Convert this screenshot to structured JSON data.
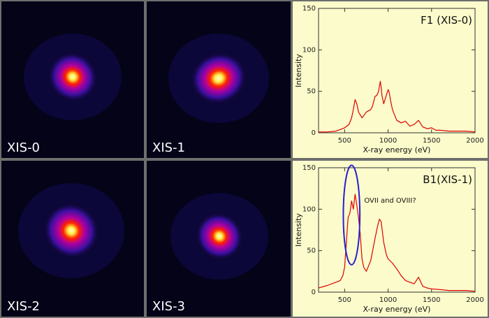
{
  "images": [
    {
      "label": "XIS-0"
    },
    {
      "label": "XIS-1"
    },
    {
      "label": "XIS-2"
    },
    {
      "label": "XIS-3"
    }
  ],
  "colors": {
    "image_background": "#040318",
    "chart_background": "#fbfbcb",
    "spectrum_line": "#e00000",
    "annotation_ellipse": "#2a1fd0"
  },
  "chart_data": [
    {
      "type": "line",
      "title": "F1 (XIS-0)",
      "xlabel": "X-ray energy (eV)",
      "ylabel": "Intensity",
      "xlim": [
        200,
        2000
      ],
      "ylim": [
        0,
        150
      ],
      "xticks": [
        500,
        1000,
        1500,
        2000
      ],
      "yticks": [
        0,
        50,
        100,
        150
      ],
      "series": [
        {
          "x": [
            200,
            300,
            400,
            450,
            500,
            550,
            580,
            600,
            620,
            640,
            660,
            700,
            750,
            800,
            820,
            850,
            870,
            890,
            910,
            920,
            930,
            950,
            970,
            1000,
            1010,
            1030,
            1050,
            1080,
            1100,
            1150,
            1200,
            1250,
            1300,
            1350,
            1400,
            1450,
            1500,
            1550,
            1600,
            1700,
            1800,
            1900,
            2000
          ],
          "y": [
            1,
            1,
            2,
            4,
            6,
            10,
            18,
            28,
            40,
            35,
            25,
            18,
            25,
            28,
            32,
            44,
            45,
            50,
            62,
            55,
            45,
            35,
            42,
            52,
            50,
            38,
            28,
            20,
            15,
            12,
            14,
            8,
            10,
            15,
            7,
            5,
            6,
            3,
            3,
            2,
            2,
            2,
            1
          ]
        }
      ],
      "annotations": []
    },
    {
      "type": "line",
      "title": "B1(XIS-1)",
      "xlabel": "X-ray energy (eV)",
      "ylabel": "Intensity",
      "xlim": [
        200,
        2000
      ],
      "ylim": [
        0,
        150
      ],
      "xticks": [
        500,
        1000,
        1500,
        2000
      ],
      "yticks": [
        0,
        50,
        100,
        150
      ],
      "series": [
        {
          "x": [
            200,
            300,
            400,
            450,
            480,
            500,
            520,
            540,
            560,
            580,
            600,
            620,
            640,
            660,
            680,
            700,
            720,
            750,
            800,
            850,
            880,
            900,
            920,
            950,
            980,
            1000,
            1050,
            1100,
            1150,
            1200,
            1250,
            1300,
            1350,
            1400,
            1450,
            1500,
            1600,
            1700,
            1800,
            1900,
            2000
          ],
          "y": [
            5,
            8,
            12,
            14,
            20,
            30,
            60,
            90,
            95,
            110,
            100,
            118,
            105,
            90,
            70,
            40,
            30,
            25,
            38,
            65,
            80,
            88,
            85,
            60,
            45,
            40,
            35,
            28,
            20,
            14,
            12,
            10,
            18,
            7,
            5,
            4,
            3,
            2,
            2,
            2,
            1
          ]
        }
      ],
      "annotations": [
        {
          "text": "OVII and OVIII?",
          "x": 725,
          "y": 108
        },
        {
          "shape": "ellipse",
          "cx": 580,
          "cy": 93,
          "rx": 95,
          "ry": 60
        }
      ]
    }
  ]
}
